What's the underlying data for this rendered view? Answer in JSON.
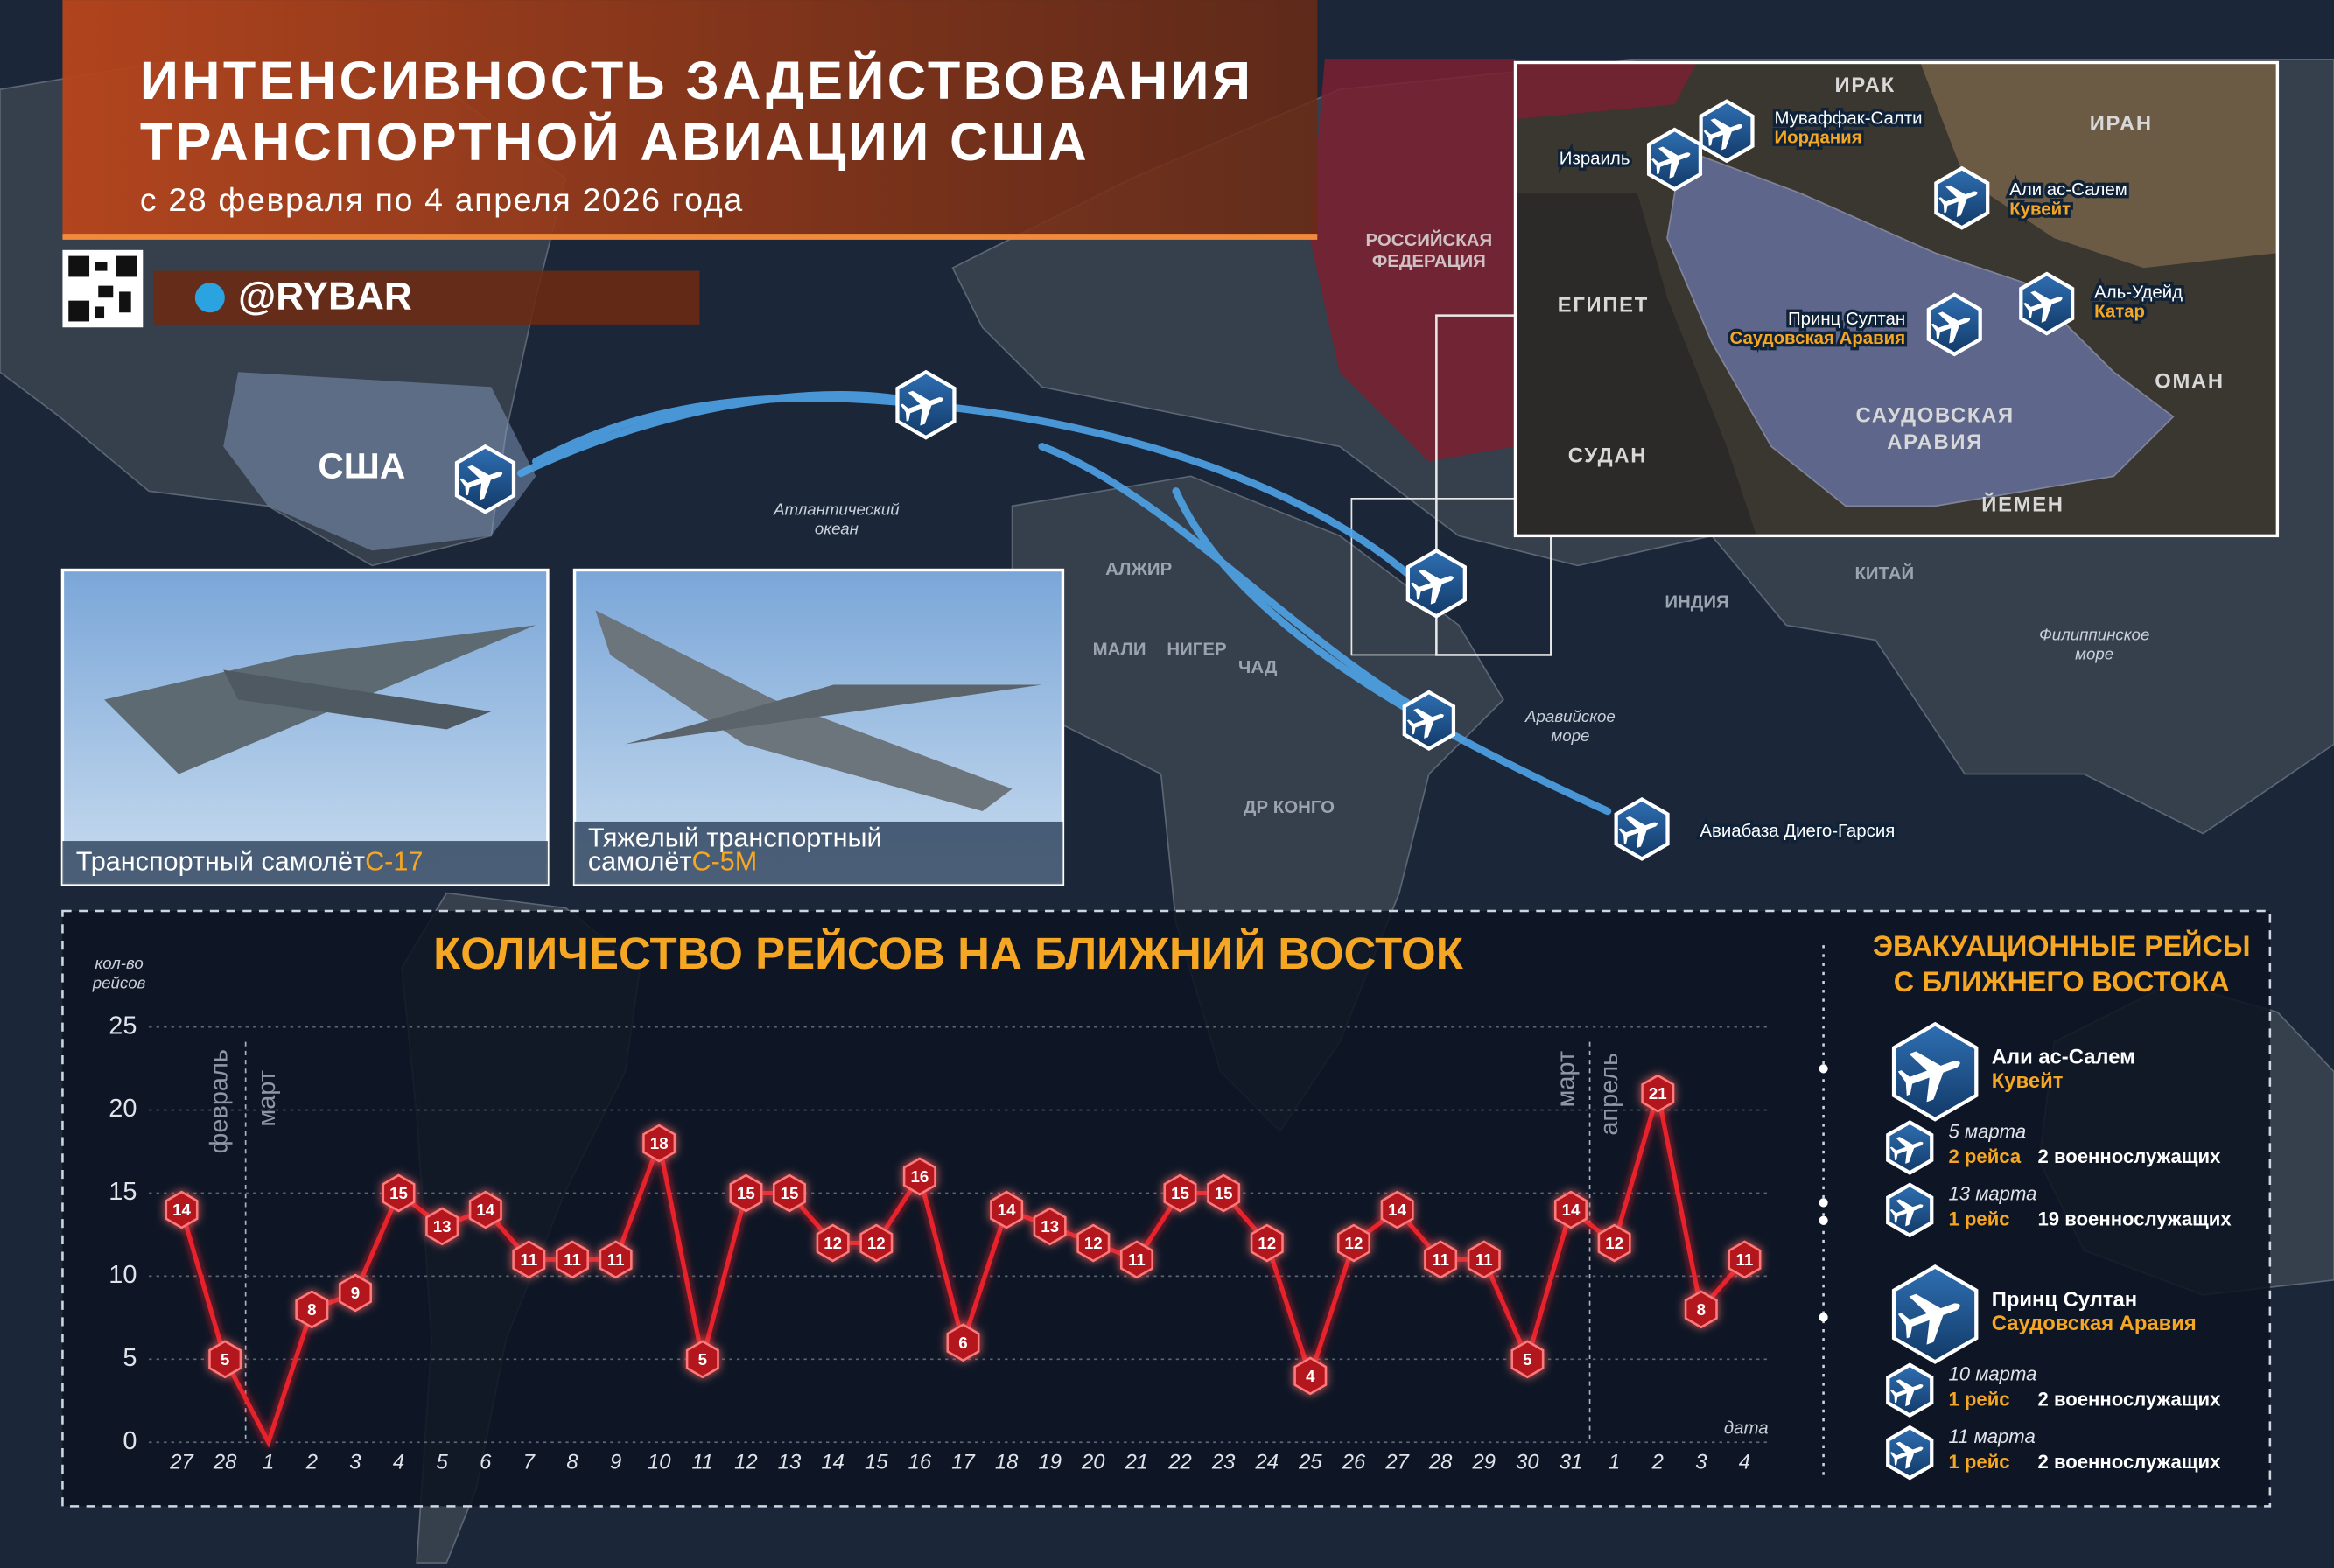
{
  "header": {
    "title_lines": [
      "ИНТЕНСИВНОСТЬ ЗАДЕЙСТВОВАНИЯ",
      "ТРАНСПОРТНОЙ АВИАЦИИ США"
    ],
    "subtitle": "с 28 февраля по 4 апреля 2026 года",
    "handle": "@RYBAR"
  },
  "map": {
    "labels": [
      "США",
      "Атлантический",
      "океан",
      "АЛЖИР",
      "МАЛИ",
      "НИГЕР",
      "ЧАД",
      "ДР КОНГО",
      "ИНДИЯ",
      "КИТАЙ",
      "Аравийское",
      "море",
      "Филиппинское",
      "море",
      "РОССИЙСКАЯ",
      "ФЕДЕРАЦИЯ"
    ],
    "inset_labels": [
      "ИРАК",
      "ИРАН",
      "ЕГИПЕТ",
      "СУДАН",
      "САУДОВСКАЯ",
      "АРАВИЯ",
      "ОМАН",
      "ЙЕМЕН"
    ],
    "bases": [
      {
        "name": "Муваффак-Салти",
        "country": "Иордания"
      },
      {
        "name": "Израиль"
      },
      {
        "name": "Али ас-Салем",
        "country": "Кувейт"
      },
      {
        "name": "Принц Султан",
        "country": "Саудовская Аравия"
      },
      {
        "name": "Аль-Удейд",
        "country": "Катар"
      },
      {
        "name": "Авиабаза Диего-Гарсия"
      }
    ]
  },
  "photos": [
    {
      "caption_lines": [
        "Транспортный самолёт"
      ],
      "model": "С-17"
    },
    {
      "caption_lines": [
        "Тяжелый транспортный",
        "самолёт"
      ],
      "model": "С-5М"
    }
  ],
  "chart_data": {
    "type": "line",
    "title": "КОЛИЧЕСТВО РЕЙСОВ НА БЛИЖНИЙ ВОСТОК",
    "ylabel_lines": [
      "кол-во",
      "рейсов"
    ],
    "xlabel": "дата",
    "categories": [
      "27",
      "28",
      "1",
      "2",
      "3",
      "4",
      "5",
      "6",
      "7",
      "8",
      "9",
      "10",
      "11",
      "12",
      "13",
      "14",
      "15",
      "16",
      "17",
      "18",
      "19",
      "20",
      "21",
      "22",
      "23",
      "24",
      "25",
      "26",
      "27",
      "28",
      "29",
      "30",
      "31",
      "1",
      "2",
      "3",
      "4"
    ],
    "values": [
      14,
      5,
      0,
      8,
      9,
      15,
      13,
      14,
      11,
      11,
      11,
      18,
      5,
      15,
      15,
      12,
      12,
      16,
      6,
      14,
      13,
      12,
      11,
      15,
      15,
      12,
      4,
      12,
      14,
      11,
      11,
      5,
      14,
      12,
      21,
      8,
      11
    ],
    "color": "#e8232b",
    "annotations": [
      "февраль",
      "март",
      "март",
      "апрель"
    ],
    "ylim": [
      0,
      25
    ],
    "yticks": [
      0,
      5,
      10,
      15,
      20,
      25
    ],
    "grid": true
  },
  "evacuation": {
    "title_lines": [
      "ЭВАКУАЦИОННЫЕ РЕЙСЫ",
      "С БЛИЖНЕГО ВОСТОКА"
    ],
    "bases": [
      {
        "name": "Али ас-Салем",
        "country": "Кувейт",
        "flights": [
          {
            "date": "5 марта",
            "flights": "2 рейса",
            "personnel": "2 военнослужащих"
          },
          {
            "date": "13 марта",
            "flights": "1 рейс",
            "personnel": "19 военнослужащих"
          }
        ]
      },
      {
        "name": "Принц Султан",
        "country": "Саудовская Аравия",
        "flights": [
          {
            "date": "10 марта",
            "flights": "1 рейс",
            "personnel": "2 военнослужащих"
          },
          {
            "date": "11 марта",
            "flights": "1 рейс",
            "personnel": "2 военнослужащих"
          }
        ]
      }
    ]
  }
}
